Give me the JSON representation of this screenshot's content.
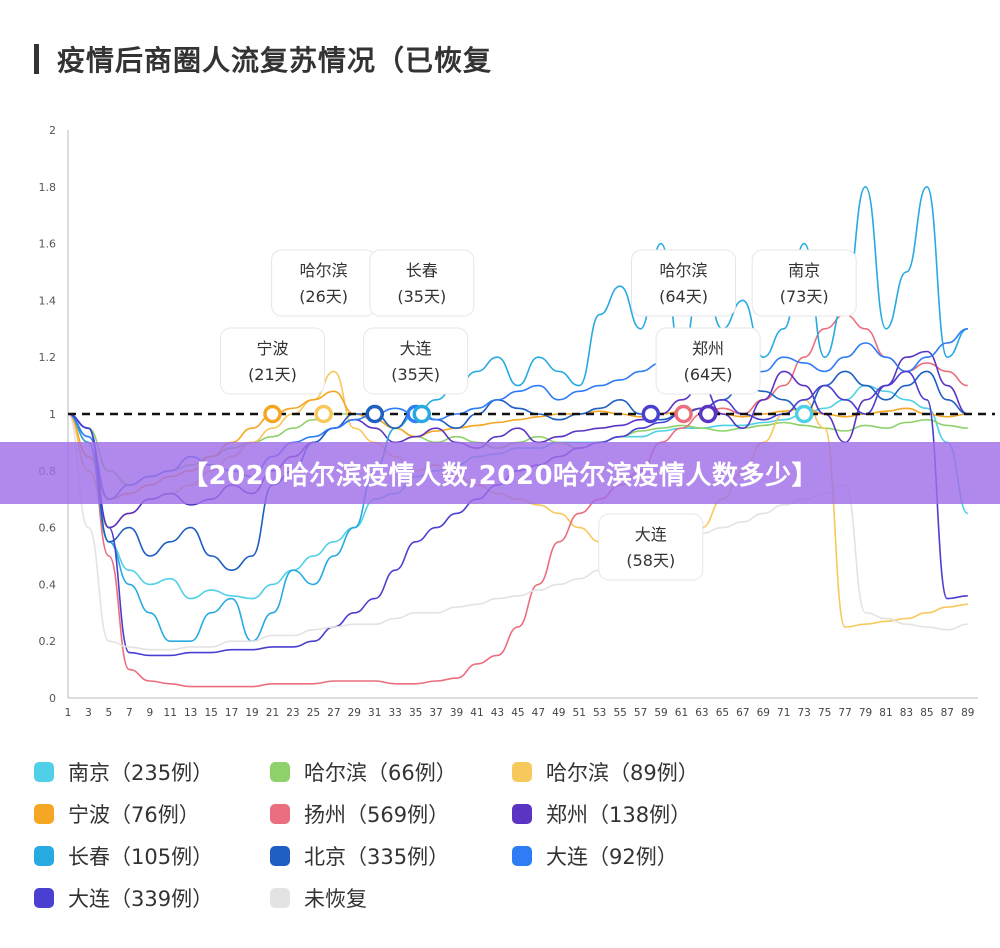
{
  "page": {
    "title": "疫情后商圈人流复苏情况（已恢复",
    "banner": "【2020哈尔滨疫情人数,2020哈尔滨疫情人数多少】"
  },
  "chart_data": {
    "type": "line",
    "title": "疫情后商圈人流复苏情况（已恢复",
    "xlabel": "",
    "ylabel": "",
    "ylim": [
      0,
      2
    ],
    "yticks": [
      "0",
      "0.2",
      "0.4",
      "0.6",
      "0.8",
      "1",
      "1.2",
      "1.4",
      "1.6",
      "1.8",
      "2"
    ],
    "xlim": [
      1,
      90
    ],
    "xticks": [
      "1",
      "3",
      "5",
      "7",
      "9",
      "11",
      "13",
      "15",
      "17",
      "19",
      "21",
      "23",
      "25",
      "27",
      "29",
      "31",
      "33",
      "35",
      "37",
      "39",
      "41",
      "43",
      "45",
      "47",
      "49",
      "51",
      "53",
      "55",
      "57",
      "59",
      "61",
      "63",
      "65",
      "67",
      "69",
      "71",
      "73",
      "75",
      "77",
      "79",
      "81",
      "83",
      "85",
      "87",
      "89"
    ],
    "grid": false,
    "reference_line": 1,
    "legend_position": "bottom",
    "series": [
      {
        "name": "南京（235例）",
        "color": "#4fd0e6",
        "recovery_day": 73,
        "x": [
          1,
          3,
          5,
          7,
          9,
          11,
          13,
          15,
          17,
          19,
          21,
          23,
          25,
          27,
          29,
          31,
          33,
          35,
          37,
          39,
          41,
          43,
          45,
          47,
          49,
          51,
          53,
          55,
          57,
          59,
          61,
          63,
          65,
          67,
          69,
          71,
          73,
          75,
          77,
          79,
          81,
          83,
          85,
          87,
          89
        ],
        "values": [
          1.0,
          0.9,
          0.55,
          0.45,
          0.4,
          0.42,
          0.35,
          0.38,
          0.36,
          0.35,
          0.4,
          0.45,
          0.5,
          0.55,
          0.6,
          0.7,
          0.72,
          0.78,
          0.8,
          0.82,
          0.85,
          0.86,
          0.88,
          0.88,
          0.9,
          0.9,
          0.9,
          0.92,
          0.92,
          0.94,
          0.95,
          0.95,
          0.96,
          0.96,
          0.97,
          0.98,
          1.0,
          1.02,
          1.05,
          1.1,
          1.08,
          1.05,
          1.02,
          0.9,
          0.65
        ]
      },
      {
        "name": "哈尔滨（66例）",
        "color": "#8ed16b",
        "recovery_day": 26,
        "x": [
          1,
          3,
          5,
          7,
          9,
          11,
          13,
          15,
          17,
          19,
          21,
          23,
          25,
          27,
          29,
          31,
          33,
          35,
          37,
          39,
          41,
          43,
          45,
          47,
          49,
          51,
          53,
          55,
          57,
          59,
          61,
          63,
          65,
          67,
          69,
          71,
          73,
          75,
          77,
          79,
          81,
          83,
          85,
          87,
          89
        ],
        "values": [
          1.0,
          0.95,
          0.8,
          0.75,
          0.78,
          0.8,
          0.82,
          0.85,
          0.88,
          0.9,
          0.92,
          0.95,
          0.98,
          1.0,
          1.0,
          0.98,
          0.95,
          0.92,
          0.9,
          0.92,
          0.9,
          0.88,
          0.9,
          0.92,
          0.9,
          0.88,
          0.9,
          0.92,
          0.94,
          0.95,
          0.96,
          0.95,
          0.94,
          0.95,
          0.96,
          0.97,
          0.96,
          0.95,
          0.94,
          0.96,
          0.95,
          0.97,
          0.98,
          0.96,
          0.95
        ]
      },
      {
        "name": "哈尔滨（89例）",
        "color": "#f7c85c",
        "recovery_day": 64,
        "x": [
          1,
          3,
          5,
          7,
          9,
          11,
          13,
          15,
          17,
          19,
          21,
          23,
          25,
          27,
          29,
          31,
          33,
          35,
          37,
          39,
          41,
          43,
          45,
          47,
          49,
          51,
          53,
          55,
          57,
          59,
          61,
          63,
          65,
          67,
          69,
          71,
          73,
          75,
          77,
          79,
          81,
          83,
          85,
          87,
          89
        ],
        "values": [
          1.0,
          0.8,
          0.6,
          0.65,
          0.7,
          0.72,
          0.75,
          0.8,
          0.85,
          0.9,
          0.95,
          1.0,
          1.05,
          1.15,
          0.95,
          0.9,
          0.85,
          0.8,
          0.82,
          0.78,
          0.75,
          0.72,
          0.7,
          0.68,
          0.65,
          0.6,
          0.55,
          0.5,
          0.45,
          0.42,
          0.55,
          0.6,
          0.7,
          0.8,
          0.9,
          1.0,
          1.05,
          0.95,
          0.25,
          0.26,
          0.27,
          0.28,
          0.3,
          0.32,
          0.33
        ]
      },
      {
        "name": "宁波（76例）",
        "color": "#f5a623",
        "recovery_day": 21,
        "x": [
          1,
          3,
          5,
          7,
          9,
          11,
          13,
          15,
          17,
          19,
          21,
          23,
          25,
          27,
          29,
          31,
          33,
          35,
          37,
          39,
          41,
          43,
          45,
          47,
          49,
          51,
          53,
          55,
          57,
          59,
          61,
          63,
          65,
          67,
          69,
          71,
          73,
          75,
          77,
          79,
          81,
          83,
          85,
          87,
          89
        ],
        "values": [
          1.0,
          0.85,
          0.7,
          0.72,
          0.75,
          0.78,
          0.8,
          0.85,
          0.9,
          0.95,
          1.0,
          1.02,
          1.05,
          1.08,
          1.0,
          0.98,
          0.95,
          0.92,
          0.94,
          0.95,
          0.96,
          0.97,
          0.98,
          0.99,
          1.0,
          1.0,
          1.01,
          1.0,
          0.99,
          1.0,
          1.01,
          1.02,
          1.0,
          0.99,
          1.0,
          1.01,
          1.02,
          1.0,
          0.99,
          1.0,
          1.01,
          1.02,
          1.0,
          0.99,
          1.0
        ]
      },
      {
        "name": "扬州（569例）",
        "color": "#ea6f7e",
        "recovery_day": 64,
        "x": [
          1,
          3,
          5,
          7,
          9,
          11,
          13,
          15,
          17,
          19,
          21,
          23,
          25,
          27,
          29,
          31,
          33,
          35,
          37,
          39,
          41,
          43,
          45,
          47,
          49,
          51,
          53,
          55,
          57,
          59,
          61,
          63,
          65,
          67,
          69,
          71,
          73,
          75,
          77,
          79,
          81,
          83,
          85,
          87,
          89
        ],
        "values": [
          1.0,
          0.9,
          0.5,
          0.1,
          0.06,
          0.05,
          0.04,
          0.04,
          0.04,
          0.04,
          0.05,
          0.05,
          0.05,
          0.06,
          0.06,
          0.06,
          0.05,
          0.05,
          0.06,
          0.07,
          0.12,
          0.15,
          0.25,
          0.4,
          0.55,
          0.65,
          0.7,
          0.75,
          0.8,
          0.9,
          0.95,
          1.0,
          1.02,
          1.0,
          1.05,
          1.1,
          1.2,
          1.3,
          1.35,
          1.3,
          1.2,
          1.15,
          1.18,
          1.15,
          1.1
        ]
      },
      {
        "name": "郑州（138例）",
        "color": "#5b34c4",
        "recovery_day": 64,
        "x": [
          1,
          3,
          5,
          7,
          9,
          11,
          13,
          15,
          17,
          19,
          21,
          23,
          25,
          27,
          29,
          31,
          33,
          35,
          37,
          39,
          41,
          43,
          45,
          47,
          49,
          51,
          53,
          55,
          57,
          59,
          61,
          63,
          65,
          67,
          69,
          71,
          73,
          75,
          77,
          79,
          81,
          83,
          85,
          87,
          89
        ],
        "values": [
          1.0,
          0.95,
          0.6,
          0.65,
          0.7,
          0.72,
          0.68,
          0.7,
          0.75,
          0.72,
          0.8,
          0.85,
          0.9,
          0.95,
          0.98,
          0.95,
          0.9,
          0.92,
          0.95,
          0.9,
          0.88,
          0.92,
          0.95,
          0.9,
          0.92,
          0.94,
          0.95,
          0.96,
          0.98,
          1.0,
          1.05,
          1.1,
          1.0,
          0.95,
          1.05,
          1.15,
          1.1,
          1.0,
          0.9,
          1.05,
          1.1,
          1.2,
          1.22,
          1.1,
          1.0
        ]
      },
      {
        "name": "长春（105例）",
        "color": "#27aae1",
        "recovery_day": 35,
        "x": [
          1,
          3,
          5,
          7,
          9,
          11,
          13,
          15,
          17,
          19,
          21,
          23,
          25,
          27,
          29,
          31,
          33,
          35,
          37,
          39,
          41,
          43,
          45,
          47,
          49,
          51,
          53,
          55,
          57,
          59,
          61,
          63,
          65,
          67,
          69,
          71,
          73,
          75,
          77,
          79,
          81,
          83,
          85,
          87,
          89
        ],
        "values": [
          1.0,
          0.9,
          0.55,
          0.4,
          0.3,
          0.2,
          0.2,
          0.3,
          0.35,
          0.2,
          0.3,
          0.45,
          0.4,
          0.5,
          0.6,
          0.8,
          0.95,
          1.0,
          1.05,
          1.1,
          1.15,
          1.2,
          1.1,
          1.2,
          1.15,
          1.1,
          1.35,
          1.45,
          1.3,
          1.6,
          1.2,
          1.5,
          1.3,
          1.4,
          1.2,
          1.3,
          1.6,
          1.2,
          1.4,
          1.8,
          1.3,
          1.5,
          1.8,
          1.2,
          1.3
        ]
      },
      {
        "name": "北京（335例）",
        "color": "#1f5fc2",
        "recovery_day": 31,
        "x": [
          1,
          3,
          5,
          7,
          9,
          11,
          13,
          15,
          17,
          19,
          21,
          23,
          25,
          27,
          29,
          31,
          33,
          35,
          37,
          39,
          41,
          43,
          45,
          47,
          49,
          51,
          53,
          55,
          57,
          59,
          61,
          63,
          65,
          67,
          69,
          71,
          73,
          75,
          77,
          79,
          81,
          83,
          85,
          87,
          89
        ],
        "values": [
          1.0,
          0.95,
          0.55,
          0.6,
          0.5,
          0.55,
          0.6,
          0.5,
          0.45,
          0.5,
          0.75,
          0.8,
          0.9,
          0.95,
          1.0,
          1.0,
          0.95,
          1.02,
          0.98,
          0.95,
          1.0,
          1.05,
          1.02,
          1.0,
          0.98,
          1.0,
          1.02,
          1.05,
          1.0,
          0.98,
          1.0,
          1.02,
          1.05,
          1.1,
          1.08,
          1.05,
          1.0,
          1.1,
          1.15,
          1.1,
          1.05,
          1.1,
          1.15,
          1.05,
          1.0
        ]
      },
      {
        "name": "大连（92例）",
        "color": "#2e7cf6",
        "recovery_day": 35,
        "x": [
          1,
          3,
          5,
          7,
          9,
          11,
          13,
          15,
          17,
          19,
          21,
          23,
          25,
          27,
          29,
          31,
          33,
          35,
          37,
          39,
          41,
          43,
          45,
          47,
          49,
          51,
          53,
          55,
          57,
          59,
          61,
          63,
          65,
          67,
          69,
          71,
          73,
          75,
          77,
          79,
          81,
          83,
          85,
          87,
          89
        ],
        "values": [
          1.0,
          0.92,
          0.7,
          0.75,
          0.78,
          0.8,
          0.85,
          0.82,
          0.8,
          0.78,
          0.85,
          0.9,
          0.92,
          0.95,
          0.98,
          1.0,
          1.02,
          1.0,
          0.98,
          1.0,
          1.02,
          1.05,
          1.08,
          1.1,
          1.05,
          1.08,
          1.1,
          1.12,
          1.15,
          1.18,
          1.2,
          1.15,
          1.1,
          1.12,
          1.15,
          1.2,
          1.18,
          1.15,
          1.2,
          1.25,
          1.2,
          1.15,
          1.2,
          1.25,
          1.3
        ]
      },
      {
        "name": "大连（339例）",
        "color": "#4a3fd1",
        "recovery_day": 58,
        "x": [
          1,
          3,
          5,
          7,
          9,
          11,
          13,
          15,
          17,
          19,
          21,
          23,
          25,
          27,
          29,
          31,
          33,
          35,
          37,
          39,
          41,
          43,
          45,
          47,
          49,
          51,
          53,
          55,
          57,
          59,
          61,
          63,
          65,
          67,
          69,
          71,
          73,
          75,
          77,
          79,
          81,
          83,
          85,
          87,
          89
        ],
        "values": [
          1.0,
          0.95,
          0.6,
          0.16,
          0.15,
          0.15,
          0.16,
          0.16,
          0.17,
          0.17,
          0.18,
          0.18,
          0.2,
          0.25,
          0.3,
          0.35,
          0.45,
          0.55,
          0.6,
          0.65,
          0.7,
          0.75,
          0.8,
          0.82,
          0.85,
          0.88,
          0.9,
          0.92,
          0.95,
          0.97,
          1.0,
          1.02,
          1.05,
          1.0,
          0.98,
          1.0,
          1.05,
          1.1,
          1.05,
          1.0,
          1.1,
          1.15,
          1.05,
          0.35,
          0.36
        ]
      },
      {
        "name": "未恢复",
        "color": "#e3e3e3",
        "x": [
          1,
          3,
          5,
          7,
          9,
          11,
          13,
          15,
          17,
          19,
          21,
          23,
          25,
          27,
          29,
          31,
          33,
          35,
          37,
          39,
          41,
          43,
          45,
          47,
          49,
          51,
          53,
          55,
          57,
          59,
          61,
          63,
          65,
          67,
          69,
          71,
          73,
          75,
          77,
          79,
          81,
          83,
          85,
          87,
          89
        ],
        "values": [
          1.0,
          0.6,
          0.2,
          0.18,
          0.17,
          0.17,
          0.18,
          0.18,
          0.2,
          0.2,
          0.22,
          0.22,
          0.24,
          0.25,
          0.26,
          0.26,
          0.28,
          0.3,
          0.3,
          0.32,
          0.33,
          0.35,
          0.36,
          0.38,
          0.4,
          0.42,
          0.45,
          0.48,
          0.5,
          0.52,
          0.55,
          0.58,
          0.6,
          0.62,
          0.65,
          0.68,
          0.7,
          0.72,
          0.75,
          0.3,
          0.28,
          0.26,
          0.25,
          0.24,
          0.26
        ]
      }
    ],
    "annotations": [
      {
        "label": "宁波",
        "days": "(21天)",
        "x": 21,
        "y": 1,
        "color": "#f5a623",
        "side": "above"
      },
      {
        "label": "哈尔滨",
        "days": "(26天)",
        "x": 26,
        "y": 1,
        "color": "#f7c85c",
        "side": "above"
      },
      {
        "label": "北京",
        "days": "",
        "x": 31,
        "y": 1,
        "color": "#1f5fc2",
        "side": "none"
      },
      {
        "label": "大连",
        "days": "(35天)",
        "x": 35,
        "y": 1,
        "color": "#2e7cf6",
        "side": "above"
      },
      {
        "label": "长春",
        "days": "(35天)",
        "x": 35.6,
        "y": 1,
        "color": "#27aae1",
        "side": "above"
      },
      {
        "label": "大连",
        "days": "(58天)",
        "x": 58,
        "y": 1,
        "color": "#4a3fd1",
        "side": "below"
      },
      {
        "label": "郑州",
        "days": "(64天)",
        "x": 63.6,
        "y": 1,
        "color": "#5b34c4",
        "side": "above"
      },
      {
        "label": "哈尔滨",
        "days": "(64天)",
        "x": 61.2,
        "y": 1,
        "color": "#ea6f7e",
        "side": "above"
      },
      {
        "label": "南京",
        "days": "(73天)",
        "x": 73,
        "y": 1,
        "color": "#4fd0e6",
        "side": "above"
      }
    ]
  },
  "legend": {
    "items": [
      {
        "label": "南京（235例）",
        "color": "#4fd0e6"
      },
      {
        "label": "哈尔滨（66例）",
        "color": "#8ed16b"
      },
      {
        "label": "哈尔滨（89例）",
        "color": "#f7c85c"
      },
      {
        "label": "宁波（76例）",
        "color": "#f5a623"
      },
      {
        "label": "扬州（569例）",
        "color": "#ea6f7e"
      },
      {
        "label": "郑州（138例）",
        "color": "#5b34c4"
      },
      {
        "label": "长春（105例）",
        "color": "#27aae1"
      },
      {
        "label": "北京（335例）",
        "color": "#1f5fc2"
      },
      {
        "label": "大连（92例）",
        "color": "#2e7cf6"
      },
      {
        "label": "大连（339例）",
        "color": "#4a3fd1"
      },
      {
        "label": "未恢复",
        "color": "#e3e3e3"
      }
    ]
  }
}
